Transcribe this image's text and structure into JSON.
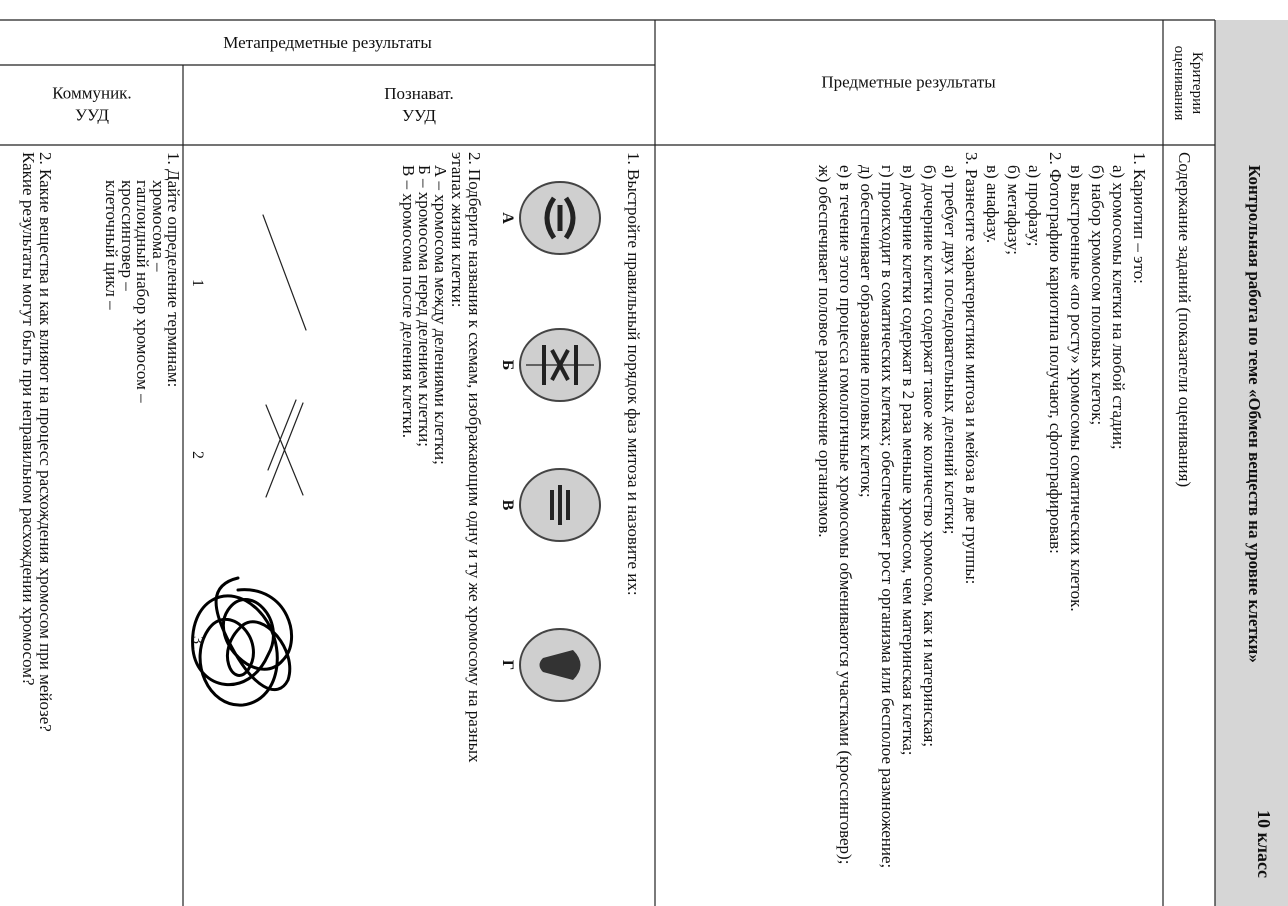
{
  "header": {
    "title": "Контрольная работа по теме «Обмен веществ на уровне клетки»",
    "grade": "10 класс"
  },
  "table": {
    "criteria": {
      "label": "Критерии оценивания",
      "content": "Содержание заданий (показатели оценивания)"
    },
    "subject": {
      "label": "Предметные результаты",
      "items": [
        {
          "text": "1. Кариотип – это:",
          "options": [
            "а) хромосомы клетки на любой стадии;",
            "б) набор хромосом половых клеток;",
            "в) выстроенные «по росту» хромосомы соматических клеток."
          ]
        },
        {
          "text": "2. Фотографию кариотипа получают, сфотографировав:",
          "options": [
            "а) профазу;",
            "б) метафазу;",
            "в) анафазу."
          ]
        },
        {
          "text": "3. Разнесите характеристики митоза и мейоза в две группы:",
          "options": [
            "а) требует двух последовательных делений клетки;",
            "б) дочерние клетки содержат такое же количество хромосом, как и материнская;",
            "в) дочерние клетки содержат в 2 раза меньше хромосом, чем материнская клетка;",
            "г) происходит в соматических клетках; обеспечивает рост организма или бесполое размножение;",
            "д) обеспечивает образование половых клеток;",
            "е) в течение этого процесса гомологичные хромосомы обмениваются участками (кроссинговер);",
            "ж) обеспечивает половое размножение организмов."
          ]
        }
      ]
    },
    "meta": {
      "label": "Метапредметные результаты",
      "cognitive": {
        "label": "Познават. УУД",
        "task1": "1. Выстройте правильный порядок фаз митоза и назовите их:",
        "phases": [
          "А",
          "Б",
          "В",
          "Г"
        ],
        "task2": "2. Подберите названия к схемам, изображающим одну и ту же хромосому на разных этапах жизни клетки:",
        "task2_options": [
          "А – хромосома между делениями клетки;",
          "Б – хромосома перед делением клетки;",
          "В – хромосома после деления клетки."
        ],
        "schemes": [
          "1",
          "2",
          "3"
        ]
      },
      "communicative": {
        "label": "Коммуник. УУД",
        "task1": "1. Дайте определение терминам:",
        "terms": [
          "хромосома –",
          "гаплоидный набор хромосом –",
          "кроссинговер –",
          "клеточный цикл –"
        ],
        "task2_lines": [
          "2. Какие вещества и как влияют на процесс расхождения хромосом при мейозе?",
          "Какие результаты могут быть при неправильном расхождении хромосом?"
        ]
      }
    }
  }
}
